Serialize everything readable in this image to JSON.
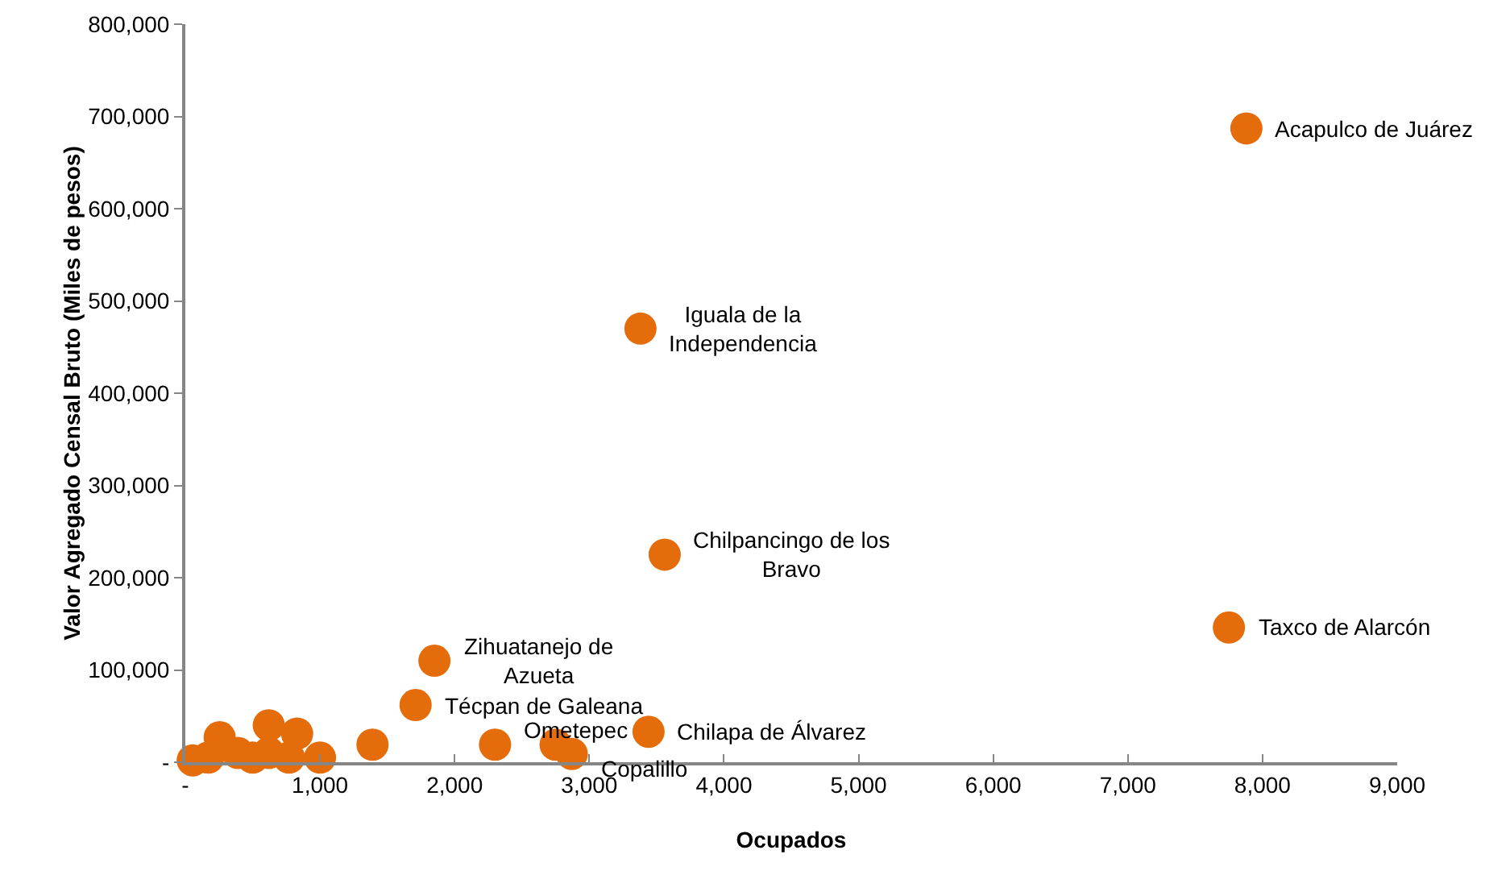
{
  "chart_data": {
    "type": "scatter",
    "xlabel": "Ocupados",
    "ylabel": "Valor Agregado Censal Bruto (Miles de pesos)",
    "series": [
      {
        "color": "#e46c0a",
        "x": [
          7880,
          3380,
          3560,
          7750,
          1850,
          1710,
          3440,
          2300,
          2750,
          2870,
          1390,
          1000,
          830,
          620,
          255,
          55,
          170,
          390,
          500,
          620,
          770
        ],
        "values": [
          687000,
          470000,
          225000,
          146000,
          110000,
          62000,
          33000,
          19000,
          19000,
          9000,
          19000,
          5000,
          31000,
          40000,
          27000,
          2000,
          5000,
          10000,
          5000,
          10000,
          5000
        ]
      }
    ],
    "annotations": [
      {
        "text": "Acapulco de Juárez",
        "x": 7880,
        "y": 687000
      },
      {
        "text": "Iguala de la Independencia",
        "x": 3380,
        "y": 470000
      },
      {
        "text": "Chilpancingo de los Bravo",
        "x": 3560,
        "y": 225000
      },
      {
        "text": "Taxco de Alarcón",
        "x": 7750,
        "y": 146000
      },
      {
        "text": "Zihuatanejo de Azueta",
        "x": 1850,
        "y": 110000
      },
      {
        "text": "Técpan de Galeana",
        "x": 1710,
        "y": 62000
      },
      {
        "text": "Chilapa de Álvarez",
        "x": 3440,
        "y": 33000
      },
      {
        "text": "Ometepec",
        "x": 2300,
        "y": 19000
      },
      {
        "text": "Copalillo",
        "x": 2870,
        "y": 9000
      }
    ],
    "xlim": [
      0,
      9000
    ],
    "xticks": [
      {
        "value": 0,
        "label": "-"
      },
      {
        "value": 1000,
        "label": "1,000"
      },
      {
        "value": 2000,
        "label": "2,000"
      },
      {
        "value": 3000,
        "label": "3,000"
      },
      {
        "value": 4000,
        "label": "4,000"
      },
      {
        "value": 5000,
        "label": "5,000"
      },
      {
        "value": 6000,
        "label": "6,000"
      },
      {
        "value": 7000,
        "label": "7,000"
      },
      {
        "value": 8000,
        "label": "8,000"
      },
      {
        "value": 9000,
        "label": "9,000"
      }
    ],
    "ylim": [
      0,
      800000
    ],
    "yticks": [
      {
        "value": 0,
        "label": "-"
      },
      {
        "value": 100000,
        "label": "100,000"
      },
      {
        "value": 200000,
        "label": "200,000"
      },
      {
        "value": 300000,
        "label": "300,000"
      },
      {
        "value": 400000,
        "label": "400,000"
      },
      {
        "value": 500000,
        "label": "500,000"
      },
      {
        "value": 600000,
        "label": "600,000"
      },
      {
        "value": 700000,
        "label": "700,000"
      },
      {
        "value": 800000,
        "label": "800,000"
      }
    ],
    "grid": false,
    "marker": "circle"
  }
}
